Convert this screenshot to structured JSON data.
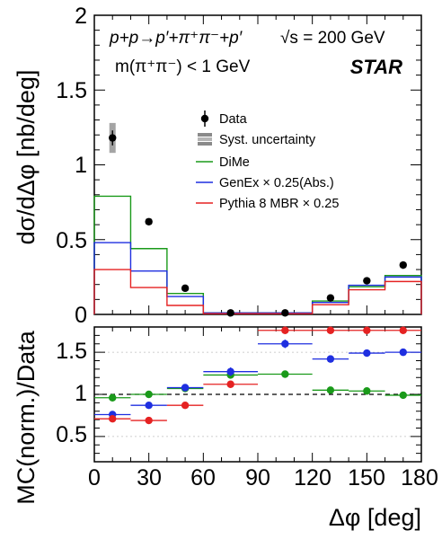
{
  "title": {
    "reaction": "p+p→p′+π⁺π⁻+p′",
    "energy": "√s = 200 GeV",
    "cut": "m(π⁺π⁻) < 1 GeV",
    "experiment": "STAR"
  },
  "legend": {
    "data": "Data",
    "syst": "Syst. uncertainty",
    "dime": "DiMe",
    "genex": "GenEx × 0.25(Abs.)",
    "pythia": "Pythia 8 MBR × 0.25"
  },
  "colors": {
    "data": "#000000",
    "dime": "#1a9a1a",
    "genex": "#1f2fe0",
    "pythia": "#e52222",
    "syst": "#8a8a8a"
  },
  "chart_data": [
    {
      "type": "line",
      "ylabel": "dσ/dΔφ [nb/deg]",
      "ylim": [
        0,
        2
      ],
      "xlim": [
        0,
        180
      ],
      "yticks": [
        "0",
        "0.5",
        "1",
        "1.5",
        "2"
      ],
      "bin_edges": [
        0,
        20,
        40,
        60,
        90,
        120,
        140,
        160,
        180
      ],
      "data": {
        "name": "Data",
        "x": [
          10,
          30,
          50,
          75,
          105,
          130,
          150,
          170
        ],
        "y": [
          1.18,
          0.62,
          0.175,
          0.01,
          0.01,
          0.11,
          0.225,
          0.33
        ],
        "err": [
          0.05,
          0.02,
          0.01,
          0.005,
          0.005,
          0.01,
          0.015,
          0.025
        ],
        "syst": [
          0.1,
          0.02,
          0.01,
          0.005,
          0.005,
          0.01,
          0.015,
          0.02
        ]
      },
      "series": [
        {
          "name": "DiMe",
          "values": [
            0.79,
            0.44,
            0.14,
            0.01,
            0.01,
            0.09,
            0.185,
            0.26
          ]
        },
        {
          "name": "GenEx",
          "values": [
            0.48,
            0.29,
            0.12,
            0.01,
            0.01,
            0.08,
            0.195,
            0.25
          ]
        },
        {
          "name": "Pythia",
          "values": [
            0.3,
            0.18,
            0.06,
            0.005,
            0.005,
            0.065,
            0.165,
            0.22
          ]
        }
      ]
    },
    {
      "type": "scatter",
      "ylabel": "MC(norm.)/Data",
      "xlabel": "Δφ [deg]",
      "ylim": [
        0.2,
        1.8
      ],
      "xlim": [
        0,
        180
      ],
      "yticks": [
        "0.5",
        "1",
        "1.5"
      ],
      "xticks": [
        "0",
        "30",
        "60",
        "90",
        "120",
        "150",
        "180"
      ],
      "reference_line": 1,
      "bin_edges": [
        0,
        20,
        40,
        60,
        90,
        120,
        140,
        160,
        180
      ],
      "series": [
        {
          "name": "DiMe",
          "x": [
            10,
            30,
            50,
            75,
            105,
            130,
            150,
            170
          ],
          "values": [
            0.96,
            1.0,
            1.07,
            1.23,
            1.24,
            1.05,
            1.04,
            0.99
          ],
          "err": [
            0.02,
            0.02,
            0.02,
            0.04,
            0.04,
            0.02,
            0.02,
            0.02
          ]
        },
        {
          "name": "GenEx",
          "x": [
            10,
            30,
            50,
            75,
            105,
            130,
            150,
            170
          ],
          "values": [
            0.76,
            0.87,
            1.08,
            1.27,
            1.6,
            1.42,
            1.49,
            1.5
          ],
          "err": [
            0.02,
            0.02,
            0.02,
            0.05,
            0.05,
            0.02,
            0.02,
            0.02
          ]
        },
        {
          "name": "Pythia",
          "x": [
            10,
            30,
            50,
            75,
            105,
            130,
            150,
            170
          ],
          "values": [
            0.71,
            0.69,
            0.87,
            1.12,
            1.76,
            1.76,
            1.76,
            1.76
          ],
          "err": [
            0.02,
            0.02,
            0.02,
            0.04,
            0.04,
            0.0,
            0.0,
            0.0
          ]
        }
      ]
    }
  ]
}
